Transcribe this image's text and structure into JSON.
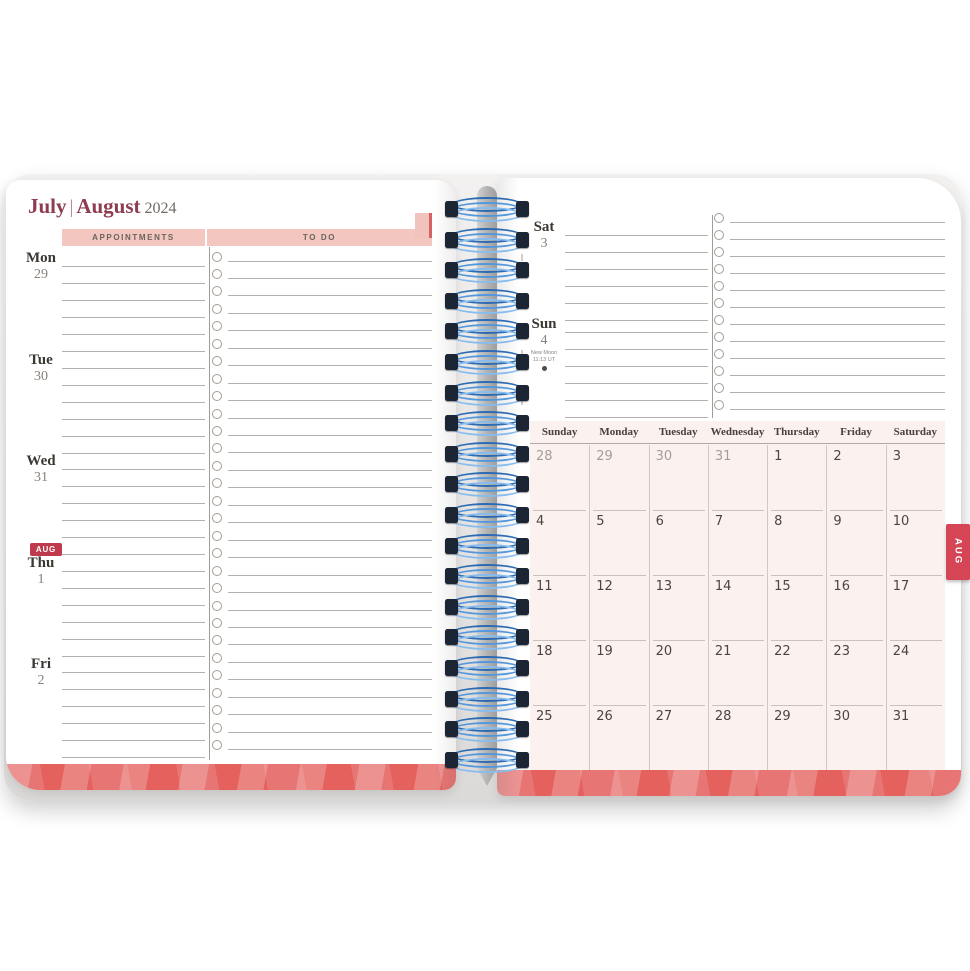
{
  "left_page": {
    "title": {
      "july": "July",
      "separator": "|",
      "august": "August",
      "year": "2024"
    },
    "column_headers": {
      "appointments": "APPOINTMENTS",
      "todo": "TO DO"
    },
    "days": [
      {
        "name": "Mon",
        "num": "29"
      },
      {
        "name": "Tue",
        "num": "30"
      },
      {
        "name": "Wed",
        "num": "31"
      },
      {
        "name": "Thu",
        "num": "1",
        "badge": "AUG"
      },
      {
        "name": "Fri",
        "num": "2"
      }
    ],
    "lines_per_day": 6,
    "todo_rows": 29
  },
  "right_page": {
    "days": [
      {
        "name": "Sat",
        "num": "3"
      },
      {
        "name": "Sun",
        "num": "4",
        "note_line1": "New Moon",
        "note_line2": "11:13 UT",
        "moon_icon": "new-moon"
      }
    ],
    "lines_per_day": 6,
    "todo_rows": 12,
    "month_tab": "AUG"
  },
  "calendar": {
    "weekday_headers": [
      "Sunday",
      "Monday",
      "Tuesday",
      "Wednesday",
      "Thursday",
      "Friday",
      "Saturday"
    ],
    "rows": [
      [
        "28",
        "29",
        "30",
        "31",
        "1",
        "2",
        "3"
      ],
      [
        "4",
        "5",
        "6",
        "7",
        "8",
        "9",
        "10"
      ],
      [
        "11",
        "12",
        "13",
        "14",
        "15",
        "16",
        "17"
      ],
      [
        "18",
        "19",
        "20",
        "21",
        "22",
        "23",
        "24"
      ],
      [
        "25",
        "26",
        "27",
        "28",
        "29",
        "30",
        "31"
      ]
    ],
    "muted_leading_days": 4
  },
  "colors": {
    "title_maroon": "#8e3c50",
    "header_pink": "#f3c6bf",
    "badge_red": "#bf3a4d",
    "tab_red": "#d64556",
    "band_red": "#e4615e",
    "calendar_bg": "#fbf2ef",
    "spiral_blue": "#4a8fd0"
  }
}
